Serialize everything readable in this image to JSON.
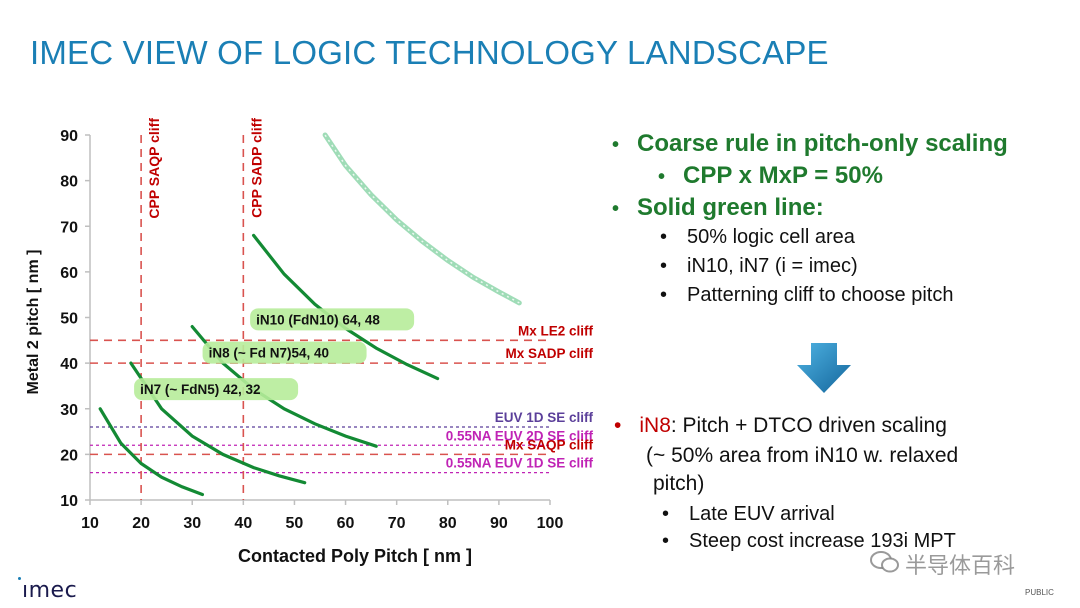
{
  "page": {
    "title": "IMEC VIEW OF LOGIC TECHNOLOGY LANDSCAPE",
    "logo": "ımec",
    "footer_tag": "PUBLIC",
    "watermark": "半导体百科"
  },
  "bullets": {
    "top": [
      {
        "text": "Coarse rule in pitch-only scaling",
        "level": 1
      },
      {
        "text": "CPP x MxP = 50%",
        "level": 1,
        "indent": true
      },
      {
        "text": "Solid green line:",
        "level": 1
      },
      {
        "text": "50% logic cell area",
        "level": 2
      },
      {
        "text": "iN10, iN7 (i = imec)",
        "level": 2
      },
      {
        "text": "Patterning cliff to choose pitch",
        "level": 2
      }
    ],
    "lower_head": "iN8",
    "lower_rest": ":  Pitch + DTCO driven scaling",
    "lower_cont1": "(~ 50% area from iN10 w. relaxed",
    "lower_cont2": "pitch)",
    "lower_items": [
      "Late EUV arrival",
      "Steep cost increase 193i MPT"
    ]
  },
  "colors": {
    "title": "#1a7fb5",
    "bullet_green": "#1f7a2e",
    "curve_green": "#138a34",
    "cliff_red": "#d9534f",
    "cliff_text_red": "#c00000",
    "euv_purple": "#5b3f9a",
    "na_magenta": "#c023b5",
    "label_highlight": "#b7ec9a",
    "arrow_blue": "#1b7fbd"
  },
  "chart_data": {
    "type": "line",
    "xlabel": "Contacted Poly Pitch [ nm ]",
    "ylabel": "Metal 2 pitch [ nm ]",
    "xlim": [
      10,
      100
    ],
    "ylim": [
      10,
      90
    ],
    "xticks": [
      10,
      20,
      30,
      40,
      50,
      60,
      70,
      80,
      90,
      100
    ],
    "yticks": [
      10,
      20,
      30,
      40,
      50,
      60,
      70,
      80,
      90
    ],
    "series": [
      {
        "name": "CPP x MxP = 50% reference",
        "style": "dotted-wide",
        "x": [
          56,
          60,
          65,
          70,
          75,
          80,
          85,
          90,
          94
        ],
        "y": [
          90,
          83.3,
          76.9,
          71.4,
          66.7,
          62.5,
          58.8,
          55.6,
          53.2
        ]
      },
      {
        "style": "solid",
        "x": [
          42,
          48,
          54,
          60,
          66,
          72,
          78
        ],
        "y": [
          68,
          59.5,
          52.9,
          47.6,
          43.3,
          39.7,
          36.6
        ]
      },
      {
        "style": "solid",
        "x": [
          30,
          36,
          42,
          48,
          54,
          60,
          66
        ],
        "y": [
          48,
          40,
          34.3,
          30,
          26.7,
          24,
          21.8
        ]
      },
      {
        "style": "solid",
        "x": [
          18,
          24,
          30,
          36,
          42,
          47,
          52
        ],
        "y": [
          40,
          30,
          24,
          20,
          17.1,
          15.3,
          13.8
        ]
      },
      {
        "style": "solid",
        "x": [
          12,
          16,
          20,
          24,
          28,
          32
        ],
        "y": [
          30,
          22.5,
          18,
          15,
          12.9,
          11.2
        ]
      }
    ],
    "horizontal_cliffs": [
      {
        "label": "Mx LE2 cliff",
        "y": 45,
        "style": "red-dash"
      },
      {
        "label": "Mx SADP cliff",
        "y": 40,
        "style": "red-dash"
      },
      {
        "label": "EUV 1D SE cliff",
        "y": 26,
        "style": "purple-dot"
      },
      {
        "label": "0.55NA EUV 2D SE cliff",
        "y": 22,
        "style": "magenta-dot"
      },
      {
        "label": "Mx SAQP cliff",
        "y": 20,
        "style": "red-dash"
      },
      {
        "label": "0.55NA EUV 1D SE cliff",
        "y": 16,
        "style": "magenta-dot"
      }
    ],
    "vertical_cliffs": [
      {
        "label": "CPP SAQP cliff",
        "x": 20
      },
      {
        "label": "CPP SADP cliff",
        "x": 40
      }
    ],
    "node_labels": [
      {
        "text": "iN10 (FdN10) 64, 48",
        "x": 42.5,
        "y": 48.5
      },
      {
        "text": "iN8 (~ Fd N7)54, 40",
        "x": 33.2,
        "y": 41.2
      },
      {
        "text": "iN7 (~ FdN5) 42, 32",
        "x": 19.8,
        "y": 33.2
      }
    ]
  }
}
